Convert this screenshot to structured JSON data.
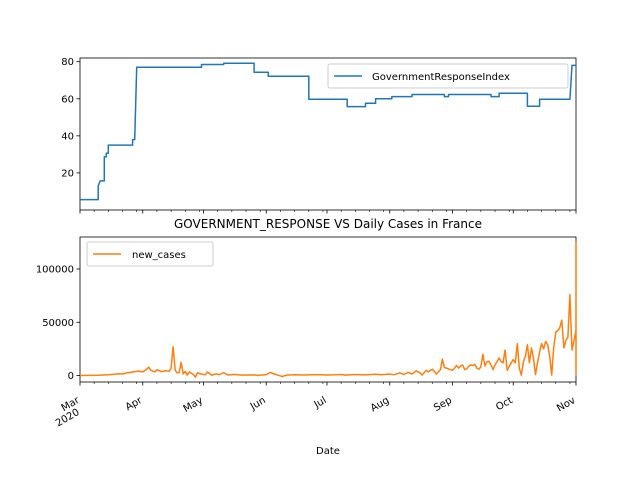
{
  "chart_data": [
    {
      "type": "line",
      "title": "",
      "xlabel": "",
      "ylabel": "",
      "ylim": [
        0,
        82
      ],
      "yticks": [
        20,
        40,
        60,
        80
      ],
      "legend": "top-right",
      "series": [
        {
          "name": "GovernmentResponseIndex",
          "color": "#1f77b4",
          "points": [
            [
              "2020-03-01",
              5.6
            ],
            [
              "2020-03-10",
              5.6
            ],
            [
              "2020-03-10",
              13.0
            ],
            [
              "2020-03-11",
              15.7
            ],
            [
              "2020-03-13",
              15.7
            ],
            [
              "2020-03-13",
              28.7
            ],
            [
              "2020-03-14",
              28.7
            ],
            [
              "2020-03-14",
              30.6
            ],
            [
              "2020-03-15",
              30.6
            ],
            [
              "2020-03-15",
              35.0
            ],
            [
              "2020-03-27",
              35.0
            ],
            [
              "2020-03-27",
              38.0
            ],
            [
              "2020-03-28",
              38.0
            ],
            [
              "2020-03-29",
              77.0
            ],
            [
              "2020-04-30",
              77.0
            ],
            [
              "2020-04-30",
              78.5
            ],
            [
              "2020-05-11",
              78.5
            ],
            [
              "2020-05-11",
              79.2
            ],
            [
              "2020-05-26",
              79.2
            ],
            [
              "2020-05-26",
              74.3
            ],
            [
              "2020-06-02",
              74.3
            ],
            [
              "2020-06-02",
              72.2
            ],
            [
              "2020-06-22",
              72.2
            ],
            [
              "2020-06-22",
              59.7
            ],
            [
              "2020-07-11",
              59.7
            ],
            [
              "2020-07-11",
              55.8
            ],
            [
              "2020-07-20",
              55.8
            ],
            [
              "2020-07-20",
              57.6
            ],
            [
              "2020-07-25",
              57.6
            ],
            [
              "2020-07-25",
              60.0
            ],
            [
              "2020-08-02",
              60.0
            ],
            [
              "2020-08-02",
              61.2
            ],
            [
              "2020-08-12",
              61.2
            ],
            [
              "2020-08-12",
              62.3
            ],
            [
              "2020-08-28",
              62.3
            ],
            [
              "2020-08-28",
              61.2
            ],
            [
              "2020-08-30",
              61.2
            ],
            [
              "2020-08-30",
              62.3
            ],
            [
              "2020-09-20",
              62.3
            ],
            [
              "2020-09-20",
              61.2
            ],
            [
              "2020-09-24",
              61.2
            ],
            [
              "2020-09-24",
              63.0
            ],
            [
              "2020-10-08",
              63.0
            ],
            [
              "2020-10-08",
              56.0
            ],
            [
              "2020-10-14",
              56.0
            ],
            [
              "2020-10-14",
              59.7
            ],
            [
              "2020-10-29",
              59.7
            ],
            [
              "2020-10-30",
              78.0
            ],
            [
              "2020-11-01",
              78.0
            ]
          ]
        }
      ]
    },
    {
      "type": "line",
      "title": "GOVERNMENT_RESPONSE VS Daily Cases in France",
      "xlabel": "Date",
      "ylabel": "",
      "ylim": [
        -6000,
        130000
      ],
      "yticks": [
        0,
        50000,
        100000
      ],
      "legend": "top-left",
      "xticks": [
        {
          "date": "2020-03-01",
          "label": "Mar",
          "sublabel": "2020"
        },
        {
          "date": "2020-04-01",
          "label": "Apr"
        },
        {
          "date": "2020-05-01",
          "label": "May"
        },
        {
          "date": "2020-06-01",
          "label": "Jun"
        },
        {
          "date": "2020-07-01",
          "label": "Jul"
        },
        {
          "date": "2020-08-01",
          "label": "Aug"
        },
        {
          "date": "2020-09-01",
          "label": "Sep"
        },
        {
          "date": "2020-10-01",
          "label": "Oct"
        },
        {
          "date": "2020-11-01",
          "label": "Nov"
        }
      ],
      "series": [
        {
          "name": "new_cases",
          "color": "#ff7f0e",
          "points": [
            [
              "2020-03-01",
              100
            ],
            [
              "2020-03-10",
              300
            ],
            [
              "2020-03-15",
              800
            ],
            [
              "2020-03-18",
              1200
            ],
            [
              "2020-03-20",
              1800
            ],
            [
              "2020-03-22",
              1500
            ],
            [
              "2020-03-24",
              2500
            ],
            [
              "2020-03-26",
              3000
            ],
            [
              "2020-03-28",
              3800
            ],
            [
              "2020-03-30",
              4200
            ],
            [
              "2020-04-01",
              3500
            ],
            [
              "2020-04-03",
              6000
            ],
            [
              "2020-04-04",
              8000
            ],
            [
              "2020-04-05",
              5000
            ],
            [
              "2020-04-07",
              3500
            ],
            [
              "2020-04-08",
              5500
            ],
            [
              "2020-04-10",
              3800
            ],
            [
              "2020-04-12",
              4500
            ],
            [
              "2020-04-14",
              4000
            ],
            [
              "2020-04-15",
              7000
            ],
            [
              "2020-04-16",
              27000
            ],
            [
              "2020-04-17",
              5000
            ],
            [
              "2020-04-18",
              2500
            ],
            [
              "2020-04-19",
              3000
            ],
            [
              "2020-04-20",
              12500
            ],
            [
              "2020-04-21",
              1500
            ],
            [
              "2020-04-22",
              4000
            ],
            [
              "2020-04-23",
              500
            ],
            [
              "2020-04-24",
              3500
            ],
            [
              "2020-04-26",
              1000
            ],
            [
              "2020-04-27",
              -1500
            ],
            [
              "2020-04-28",
              2500
            ],
            [
              "2020-04-30",
              1500
            ],
            [
              "2020-05-02",
              800
            ],
            [
              "2020-05-03",
              3500
            ],
            [
              "2020-05-05",
              500
            ],
            [
              "2020-05-07",
              1500
            ],
            [
              "2020-05-09",
              1000
            ],
            [
              "2020-05-11",
              2800
            ],
            [
              "2020-05-13",
              600
            ],
            [
              "2020-05-16",
              1000
            ],
            [
              "2020-05-20",
              500
            ],
            [
              "2020-05-25",
              700
            ],
            [
              "2020-05-28",
              400
            ],
            [
              "2020-06-01",
              900
            ],
            [
              "2020-06-03",
              3000
            ],
            [
              "2020-06-05",
              1500
            ],
            [
              "2020-06-07",
              300
            ],
            [
              "2020-06-09",
              -800
            ],
            [
              "2020-06-11",
              500
            ],
            [
              "2020-06-15",
              800
            ],
            [
              "2020-06-20",
              600
            ],
            [
              "2020-06-25",
              900
            ],
            [
              "2020-07-01",
              600
            ],
            [
              "2020-07-05",
              800
            ],
            [
              "2020-07-08",
              1000
            ],
            [
              "2020-07-10",
              500
            ],
            [
              "2020-07-15",
              1000
            ],
            [
              "2020-07-20",
              700
            ],
            [
              "2020-07-25",
              1200
            ],
            [
              "2020-07-28",
              800
            ],
            [
              "2020-08-01",
              1500
            ],
            [
              "2020-08-03",
              800
            ],
            [
              "2020-08-06",
              2500
            ],
            [
              "2020-08-08",
              1000
            ],
            [
              "2020-08-10",
              3000
            ],
            [
              "2020-08-12",
              1500
            ],
            [
              "2020-08-14",
              4500
            ],
            [
              "2020-08-16",
              2500
            ],
            [
              "2020-08-17",
              500
            ],
            [
              "2020-08-19",
              5000
            ],
            [
              "2020-08-20",
              3500
            ],
            [
              "2020-08-22",
              6000
            ],
            [
              "2020-08-23",
              4000
            ],
            [
              "2020-08-24",
              1500
            ],
            [
              "2020-08-26",
              5500
            ],
            [
              "2020-08-27",
              15500
            ],
            [
              "2020-08-28",
              7500
            ],
            [
              "2020-08-29",
              7000
            ],
            [
              "2020-08-31",
              5500
            ],
            [
              "2020-09-01",
              5000
            ],
            [
              "2020-09-02",
              7000
            ],
            [
              "2020-09-03",
              9500
            ],
            [
              "2020-09-04",
              7000
            ],
            [
              "2020-09-05",
              9000
            ],
            [
              "2020-09-06",
              10000
            ],
            [
              "2020-09-07",
              5500
            ],
            [
              "2020-09-08",
              6500
            ],
            [
              "2020-09-09",
              8500
            ],
            [
              "2020-09-10",
              10000
            ],
            [
              "2020-09-11",
              9500
            ],
            [
              "2020-09-12",
              10500
            ],
            [
              "2020-09-13",
              7000
            ],
            [
              "2020-09-14",
              6000
            ],
            [
              "2020-09-15",
              8000
            ],
            [
              "2020-09-16",
              20000
            ],
            [
              "2020-09-17",
              9000
            ],
            [
              "2020-09-18",
              13000
            ],
            [
              "2020-09-19",
              13500
            ],
            [
              "2020-09-20",
              10000
            ],
            [
              "2020-09-21",
              5500
            ],
            [
              "2020-09-22",
              10000
            ],
            [
              "2020-09-23",
              13000
            ],
            [
              "2020-09-24",
              16500
            ],
            [
              "2020-09-25",
              13000
            ],
            [
              "2020-09-26",
              12000
            ],
            [
              "2020-09-27",
              24000
            ],
            [
              "2020-09-28",
              5000
            ],
            [
              "2020-09-29",
              8500
            ],
            [
              "2020-09-30",
              12000
            ],
            [
              "2020-10-01",
              15000
            ],
            [
              "2020-10-02",
              12000
            ],
            [
              "2020-10-03",
              30000
            ],
            [
              "2020-10-04",
              7000
            ],
            [
              "2020-10-05",
              500
            ],
            [
              "2020-10-06",
              13000
            ],
            [
              "2020-10-07",
              18000
            ],
            [
              "2020-10-08",
              29000
            ],
            [
              "2020-10-09",
              12000
            ],
            [
              "2020-10-10",
              26000
            ],
            [
              "2020-10-11",
              16000
            ],
            [
              "2020-10-12",
              1000
            ],
            [
              "2020-10-13",
              12000
            ],
            [
              "2020-10-14",
              22000
            ],
            [
              "2020-10-15",
              30000
            ],
            [
              "2020-10-16",
              25000
            ],
            [
              "2020-10-17",
              32000
            ],
            [
              "2020-10-18",
              29000
            ],
            [
              "2020-10-19",
              18000
            ],
            [
              "2020-10-20",
              500
            ],
            [
              "2020-10-21",
              26000
            ],
            [
              "2020-10-22",
              41000
            ],
            [
              "2020-10-23",
              42000
            ],
            [
              "2020-10-24",
              45000
            ],
            [
              "2020-10-25",
              52000
            ],
            [
              "2020-10-26",
              26000
            ],
            [
              "2020-10-27",
              33000
            ],
            [
              "2020-10-28",
              36000
            ],
            [
              "2020-10-29",
              76000
            ],
            [
              "2020-10-30",
              24000
            ],
            [
              "2020-10-31",
              33000
            ],
            [
              "2020-11-01",
              42000
            ],
            [
              "2020-11-02",
              42000
            ],
            [
              "2020-11-03",
              500
            ],
            [
              "2020-11-04",
              36000
            ],
            [
              "2020-11-05",
              58000
            ],
            [
              "2020-11-06",
              125000
            ],
            [
              "2020-11-07",
              36000
            ],
            [
              "2020-11-08",
              45000
            ],
            [
              "2020-11-09",
              49000
            ],
            [
              "2020-11-10",
              36000
            ]
          ]
        }
      ]
    }
  ]
}
